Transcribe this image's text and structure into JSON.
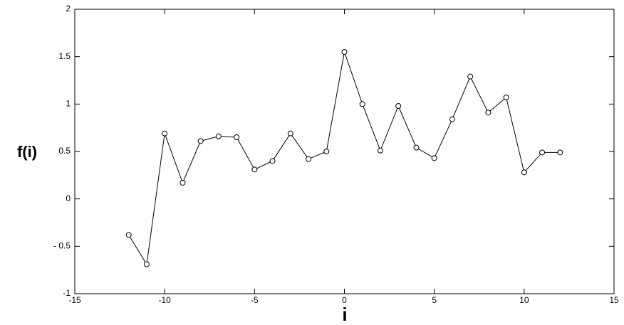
{
  "chart_data": {
    "type": "line",
    "x_label": "i",
    "y_label": "f(i)",
    "x": [
      -12,
      -11,
      -10,
      -9,
      -8,
      -7,
      -6,
      -5,
      -4,
      -3,
      -2,
      -1,
      0,
      1,
      2,
      3,
      4,
      5,
      6,
      7,
      8,
      9,
      10,
      11,
      12
    ],
    "values": [
      -0.38,
      -0.69,
      0.69,
      0.17,
      0.61,
      0.66,
      0.65,
      0.31,
      0.4,
      0.69,
      0.42,
      0.5,
      1.55,
      1.0,
      0.51,
      0.98,
      0.54,
      0.43,
      0.84,
      1.29,
      0.91,
      1.07,
      0.28,
      0.49,
      0.49
    ],
    "color": "#000000",
    "xlim": [
      -15,
      15
    ],
    "xticks": [
      -15,
      -10,
      -5,
      0,
      5,
      10,
      15
    ],
    "ylim": [
      -1,
      2
    ],
    "yticks": [
      -1,
      {
        "value": -0.5,
        "label": "- 0.5"
      },
      0,
      0.5,
      1,
      1.5,
      2
    ],
    "grid": false
  }
}
